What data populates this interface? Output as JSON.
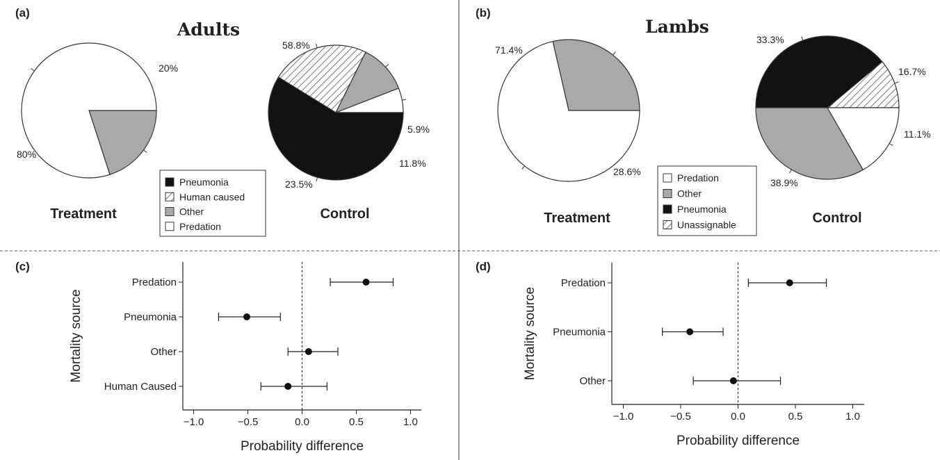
{
  "panels": {
    "a": "(a)",
    "b": "(b)",
    "c": "(c)",
    "d": "(d)"
  },
  "titles": {
    "adults": "Adults",
    "lambs": "Lambs"
  },
  "colors": {
    "Pneumonia": "#121212",
    "Human caused": "hatch",
    "Other": "#a9a9a9",
    "Predation": "#ffffff",
    "Unassignable": "hatch"
  },
  "chart_data": [
    {
      "type": "pie",
      "panel": "(a)",
      "title": "Adults",
      "group": "Treatment",
      "slices": [
        {
          "category": "Other",
          "percent": 20,
          "label": "20%"
        },
        {
          "category": "Predation",
          "percent": 80,
          "label": "80%"
        }
      ]
    },
    {
      "type": "pie",
      "panel": "(a)",
      "title": "Adults",
      "group": "Control",
      "slices": [
        {
          "category": "Predation",
          "percent": 5.9,
          "label": "5.9%"
        },
        {
          "category": "Other",
          "percent": 11.8,
          "label": "11.8%"
        },
        {
          "category": "Human caused",
          "percent": 23.5,
          "label": "23.5%"
        },
        {
          "category": "Pneumonia",
          "percent": 58.8,
          "label": "58.8%"
        }
      ],
      "legend": [
        "Pneumonia",
        "Human caused",
        "Other",
        "Predation"
      ]
    },
    {
      "type": "pie",
      "panel": "(b)",
      "title": "Lambs",
      "group": "Treatment",
      "slices": [
        {
          "category": "Other",
          "percent": 28.6,
          "label": "28.6%"
        },
        {
          "category": "Predation",
          "percent": 71.4,
          "label": "71.4%"
        }
      ]
    },
    {
      "type": "pie",
      "panel": "(b)",
      "title": "Lambs",
      "group": "Control",
      "slices": [
        {
          "category": "Unassignable",
          "percent": 11.1,
          "label": "11.1%"
        },
        {
          "category": "Pneumonia",
          "percent": 38.9,
          "label": "38.9%"
        },
        {
          "category": "Other",
          "percent": 33.3,
          "label": "33.3%"
        },
        {
          "category": "Predation",
          "percent": 16.7,
          "label": "16.7%"
        }
      ],
      "legend": [
        "Predation",
        "Other",
        "Pneumonia",
        "Unassignable"
      ]
    },
    {
      "type": "scatter",
      "panel": "(c)",
      "xlabel": "Probability difference",
      "ylabel": "Mortality source",
      "xlim": [
        -1.1,
        1.1
      ],
      "xticks": [
        "−1.0",
        "−0.5",
        "0.0",
        "0.5",
        "1.0"
      ],
      "categories": [
        "Predation",
        "Pneumonia",
        "Other",
        "Human Caused"
      ],
      "estimates": [
        0.59,
        -0.51,
        0.06,
        -0.13
      ],
      "lower": [
        0.26,
        -0.77,
        -0.13,
        -0.38
      ],
      "upper": [
        0.84,
        -0.2,
        0.33,
        0.23
      ]
    },
    {
      "type": "scatter",
      "panel": "(d)",
      "xlabel": "Probability difference",
      "ylabel": "Mortality source",
      "xlim": [
        -1.1,
        1.1
      ],
      "xticks": [
        "−1.0",
        "−0.5",
        "0.0",
        "0.5",
        "1.0"
      ],
      "categories": [
        "Predation",
        "Pneumonia",
        "Other"
      ],
      "estimates": [
        0.45,
        -0.42,
        -0.04
      ],
      "lower": [
        0.09,
        -0.66,
        -0.39
      ],
      "upper": [
        0.77,
        -0.13,
        0.37
      ]
    }
  ]
}
